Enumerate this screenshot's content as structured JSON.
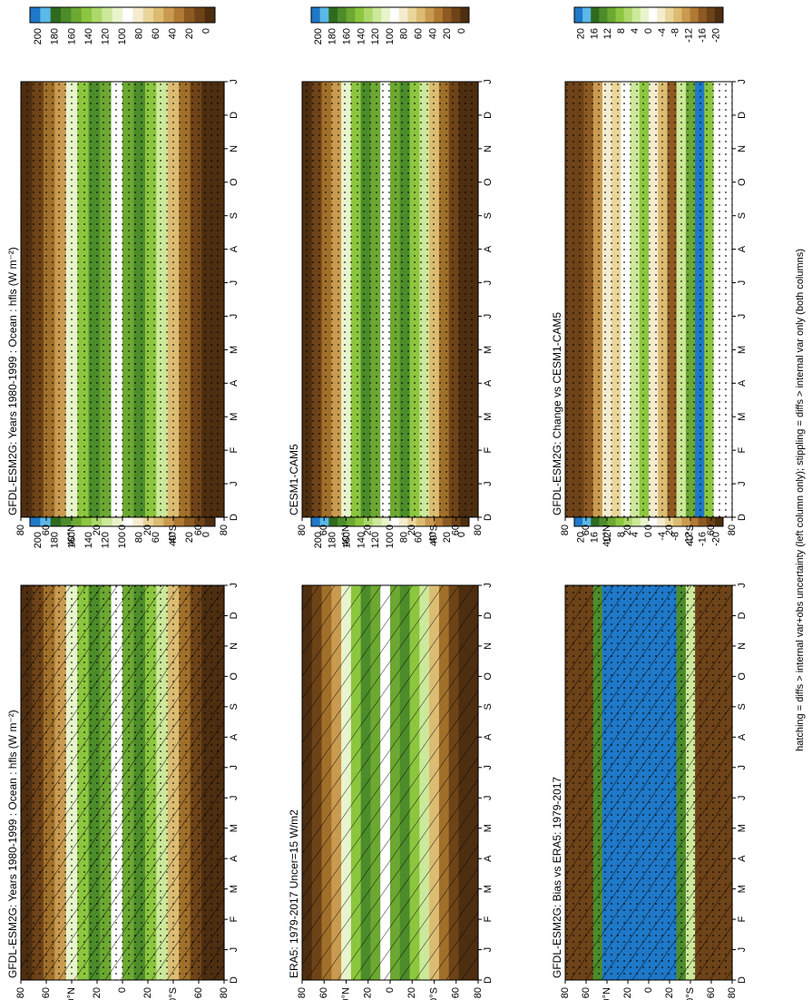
{
  "caption": "hatching = diffs > internal var+obs uncertainty (left column only); stippling = diffs > internal var only (both columns)",
  "chart_data": [
    {
      "type": "heatmap",
      "title": "GFDL-ESM2G: Years 1980-1999 : Ocean : hfls (W m⁻²)",
      "month_labels": [
        "D",
        "J",
        "F",
        "M",
        "A",
        "M",
        "J",
        "J",
        "A",
        "S",
        "O",
        "N",
        "D",
        "J"
      ],
      "lat_labels": [
        "80",
        "60",
        "40°N",
        "20",
        "0",
        "20",
        "40°S",
        "60",
        "80"
      ],
      "colorbar": [
        "200",
        "180",
        "160",
        "140",
        "120",
        "100",
        "80",
        "60",
        "40",
        "20",
        "0"
      ],
      "overlay": "hatching + stippling"
    },
    {
      "type": "heatmap",
      "title": "GFDL-ESM2G: Years 1980-1999 : Ocean : hfls (W m⁻²)",
      "month_labels": [
        "D",
        "J",
        "F",
        "M",
        "A",
        "M",
        "J",
        "J",
        "A",
        "S",
        "O",
        "N",
        "D",
        "J"
      ],
      "lat_labels": [
        "80",
        "60",
        "40°N",
        "20",
        "0",
        "20",
        "40°S",
        "60",
        "80"
      ],
      "colorbar": [
        "200",
        "180",
        "160",
        "140",
        "120",
        "100",
        "80",
        "60",
        "40",
        "20",
        "0"
      ],
      "overlay": "stippling"
    },
    {
      "type": "heatmap",
      "title": "ERA5: 1979-2017 Uncer=15 W/m2",
      "month_labels": [
        "D",
        "J",
        "F",
        "M",
        "A",
        "M",
        "J",
        "J",
        "A",
        "S",
        "O",
        "N",
        "D",
        "J"
      ],
      "lat_labels": [
        "80",
        "60",
        "40°N",
        "20",
        "0",
        "20",
        "40°S",
        "60",
        "80"
      ],
      "colorbar": [
        "200",
        "180",
        "160",
        "140",
        "120",
        "100",
        "80",
        "60",
        "40",
        "20",
        "0"
      ],
      "overlay": "hatching"
    },
    {
      "type": "heatmap",
      "title": "CESM1-CAM5",
      "month_labels": [
        "D",
        "J",
        "F",
        "M",
        "A",
        "M",
        "J",
        "J",
        "A",
        "S",
        "O",
        "N",
        "D",
        "J"
      ],
      "lat_labels": [
        "80",
        "60",
        "40°N",
        "20",
        "0",
        "20",
        "40°S",
        "60",
        "80"
      ],
      "colorbar": [
        "200",
        "180",
        "160",
        "140",
        "120",
        "100",
        "80",
        "60",
        "40",
        "20",
        "0"
      ],
      "overlay": "stippling"
    },
    {
      "type": "heatmap",
      "title": "GFDL-ESM2G: Bias vs ERA5: 1979-2017",
      "month_labels": [
        "D",
        "J",
        "F",
        "M",
        "A",
        "M",
        "J",
        "J",
        "A",
        "S",
        "O",
        "N",
        "D",
        "J"
      ],
      "lat_labels": [
        "80",
        "60",
        "40°N",
        "20",
        "0",
        "20",
        "40°S",
        "60",
        "80"
      ],
      "colorbar": [
        "20",
        "16",
        "12",
        "8",
        "4",
        "0",
        "-4",
        "-8",
        "-12",
        "-16",
        "-20"
      ],
      "overlay": "hatching + stippling"
    },
    {
      "type": "heatmap",
      "title": "GFDL-ESM2G: Change vs CESM1-CAM5",
      "month_labels": [
        "D",
        "J",
        "F",
        "M",
        "A",
        "M",
        "J",
        "J",
        "A",
        "S",
        "O",
        "N",
        "D",
        "J"
      ],
      "lat_labels": [
        "80",
        "60",
        "40°N",
        "20",
        "0",
        "20",
        "40°S",
        "60",
        "80"
      ],
      "colorbar": [
        "20",
        "16",
        "12",
        "8",
        "4",
        "0",
        "-4",
        "-8",
        "-12",
        "-16",
        "-20"
      ],
      "overlay": "stippling"
    }
  ]
}
